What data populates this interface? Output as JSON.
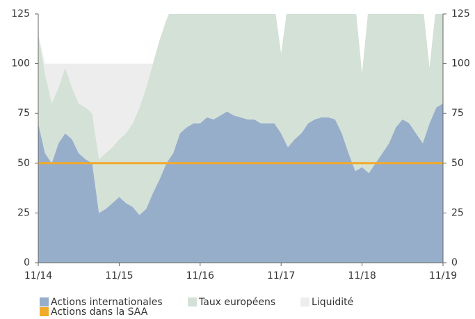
{
  "chart_data": {
    "type": "stacked_area",
    "x": [
      "11/14",
      "12/14",
      "1/15",
      "2/15",
      "3/15",
      "4/15",
      "5/15",
      "6/15",
      "7/15",
      "8/15",
      "9/15",
      "10/15",
      "11/15",
      "12/15",
      "1/16",
      "2/16",
      "3/16",
      "4/16",
      "5/16",
      "6/16",
      "7/16",
      "8/16",
      "9/16",
      "10/16",
      "11/16",
      "12/16",
      "1/17",
      "2/17",
      "3/17",
      "4/17",
      "5/17",
      "6/17",
      "7/17",
      "8/17",
      "9/17",
      "10/17",
      "11/17",
      "12/17",
      "1/18",
      "2/18",
      "3/18",
      "4/18",
      "5/18",
      "6/18",
      "7/18",
      "8/18",
      "9/18",
      "10/18",
      "11/18",
      "12/18",
      "1/19",
      "2/19",
      "3/19",
      "4/19",
      "5/19",
      "6/19",
      "7/19",
      "8/19",
      "9/19",
      "10/19",
      "11/19"
    ],
    "series": [
      {
        "name": "Actions internationales",
        "color": "#97aecb",
        "values": [
          70,
          55,
          50,
          60,
          65,
          62,
          55,
          52,
          50,
          25,
          27,
          30,
          33,
          30,
          28,
          24,
          27,
          35,
          42,
          50,
          55,
          65,
          68,
          70,
          70,
          73,
          72,
          74,
          76,
          74,
          73,
          72,
          72,
          70,
          70,
          70,
          65,
          58,
          62,
          65,
          70,
          72,
          73,
          73,
          72,
          65,
          55,
          46,
          48,
          45,
          50,
          55,
          60,
          68,
          72,
          70,
          65,
          60,
          70,
          78,
          80
        ]
      },
      {
        "name": "Taux européens",
        "color": "#d4e1d6",
        "values": [
          45,
          40,
          30,
          28,
          33,
          26,
          25,
          26,
          25,
          27,
          28,
          28,
          29,
          35,
          42,
          54,
          61,
          65,
          70,
          72,
          75,
          65,
          62,
          60,
          60,
          57,
          58,
          56,
          54,
          56,
          57,
          58,
          58,
          60,
          60,
          60,
          40,
          72,
          68,
          65,
          60,
          58,
          57,
          57,
          58,
          65,
          75,
          84,
          47,
          85,
          80,
          75,
          70,
          62,
          58,
          60,
          65,
          70,
          28,
          52,
          50
        ]
      },
      {
        "name": "Liquidité",
        "color": "#ededed",
        "values": [
          0,
          5,
          20,
          12,
          2,
          12,
          20,
          22,
          25,
          48,
          45,
          42,
          38,
          35,
          30,
          22,
          12,
          0,
          0,
          0,
          0,
          0,
          0,
          0,
          0,
          0,
          0,
          0,
          0,
          0,
          0,
          0,
          0,
          0,
          0,
          0,
          0,
          0,
          0,
          0,
          0,
          0,
          0,
          0,
          0,
          0,
          0,
          0,
          0,
          0,
          0,
          0,
          0,
          0,
          0,
          0,
          0,
          0,
          0,
          0,
          0
        ]
      }
    ],
    "reference_line": {
      "name": "Actions dans la SAA",
      "color": "#f2aa2a",
      "value": 50
    },
    "ylim": [
      0,
      125
    ],
    "yticks": [
      0,
      25,
      50,
      75,
      100,
      125
    ],
    "y2lim": [
      0,
      125
    ],
    "y2ticks": [
      0,
      25,
      50,
      75,
      100,
      125
    ],
    "xticks": [
      "11/14",
      "11/15",
      "11/16",
      "11/17",
      "11/18",
      "11/19"
    ],
    "legend": "bottom-left"
  }
}
